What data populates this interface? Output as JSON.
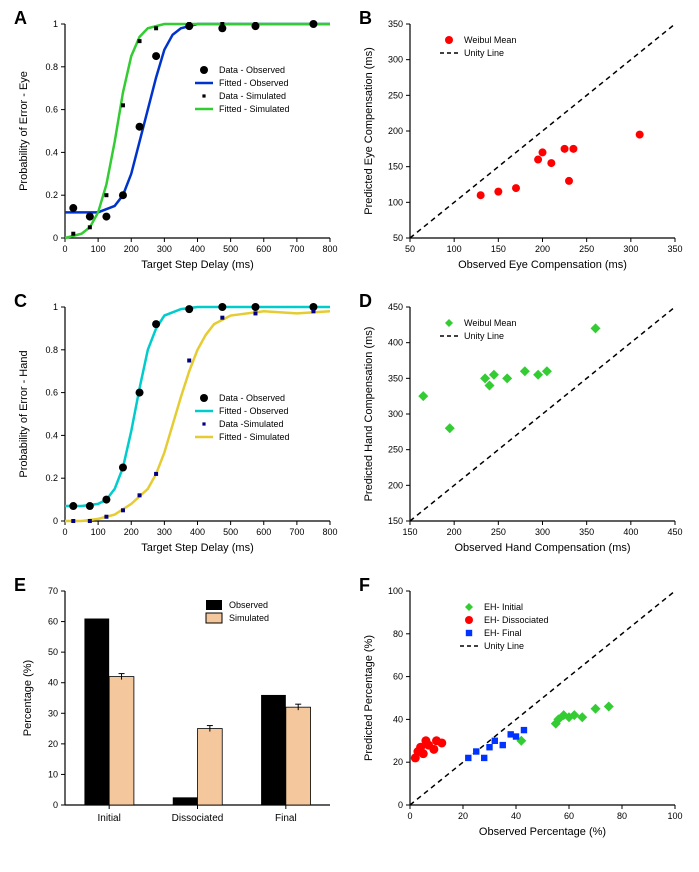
{
  "panelA": {
    "label": "A",
    "type": "line+scatter",
    "xlabel": "Target Step Delay (ms)",
    "ylabel": "Probability of Error - Eye",
    "xlim": [
      0,
      800
    ],
    "ylim": [
      0,
      1
    ],
    "xticks": [
      0,
      100,
      200,
      300,
      400,
      500,
      600,
      700,
      800
    ],
    "yticks": [
      0,
      0.2,
      0.4,
      0.6,
      0.8,
      1.0
    ],
    "background_color": "#ffffff",
    "axis_color": "#000000",
    "legend": {
      "items": [
        {
          "marker": "circle",
          "color": "#000000",
          "label": "Data - Observed"
        },
        {
          "marker": "line",
          "color": "#0033cc",
          "label": "Fitted - Observed"
        },
        {
          "marker": "square-tiny",
          "color": "#000000",
          "label": "Data - Simulated"
        },
        {
          "marker": "line",
          "color": "#33cc33",
          "label": "Fitted - Simulated"
        }
      ]
    },
    "series": [
      {
        "name": "fitted-observed",
        "type": "line",
        "color": "#0033cc",
        "linewidth": 2.5,
        "x": [
          0,
          50,
          100,
          150,
          175,
          200,
          225,
          250,
          275,
          300,
          325,
          350,
          400,
          500,
          600,
          700,
          800
        ],
        "y": [
          0.12,
          0.12,
          0.12,
          0.15,
          0.2,
          0.3,
          0.45,
          0.6,
          0.75,
          0.88,
          0.95,
          0.98,
          1.0,
          1.0,
          1.0,
          1.0,
          1.0
        ]
      },
      {
        "name": "fitted-simulated",
        "type": "line",
        "color": "#33cc33",
        "linewidth": 2.5,
        "x": [
          0,
          50,
          75,
          100,
          125,
          150,
          175,
          200,
          225,
          250,
          275,
          300,
          400,
          500,
          600,
          700,
          800
        ],
        "y": [
          0.0,
          0.02,
          0.05,
          0.12,
          0.25,
          0.45,
          0.68,
          0.85,
          0.94,
          0.98,
          0.99,
          1.0,
          1.0,
          1.0,
          1.0,
          1.0,
          1.0
        ]
      },
      {
        "name": "data-observed",
        "type": "scatter",
        "marker": "circle",
        "color": "#000000",
        "size": 4,
        "x": [
          25,
          75,
          125,
          175,
          225,
          275,
          375,
          475,
          575,
          750
        ],
        "y": [
          0.14,
          0.1,
          0.1,
          0.2,
          0.52,
          0.85,
          0.99,
          0.98,
          0.99,
          1.0
        ]
      },
      {
        "name": "data-simulated",
        "type": "scatter",
        "marker": "square",
        "color": "#000000",
        "size": 2.5,
        "x": [
          25,
          75,
          125,
          175,
          225,
          275,
          375,
          475,
          575,
          750
        ],
        "y": [
          0.02,
          0.05,
          0.2,
          0.62,
          0.92,
          0.98,
          1.0,
          1.0,
          1.0,
          1.0
        ]
      }
    ]
  },
  "panelB": {
    "label": "B",
    "type": "scatter",
    "xlabel": "Observed Eye Compensation (ms)",
    "ylabel": "Predicted Eye Compensation (ms)",
    "xlim": [
      50,
      350
    ],
    "ylim": [
      50,
      350
    ],
    "xticks": [
      50,
      100,
      150,
      200,
      250,
      300,
      350
    ],
    "yticks": [
      50,
      100,
      150,
      200,
      250,
      300,
      350
    ],
    "legend": {
      "items": [
        {
          "marker": "circle",
          "color": "#ff0000",
          "label": "Weibul Mean"
        },
        {
          "marker": "dash",
          "color": "#000000",
          "label": "Unity Line"
        }
      ]
    },
    "unity_line": true,
    "series": [
      {
        "name": "weibul-mean",
        "type": "scatter",
        "marker": "circle",
        "color": "#ff0000",
        "size": 4,
        "x": [
          130,
          150,
          170,
          195,
          200,
          210,
          225,
          230,
          235,
          310
        ],
        "y": [
          110,
          115,
          120,
          160,
          170,
          155,
          175,
          130,
          175,
          195
        ]
      }
    ]
  },
  "panelC": {
    "label": "C",
    "type": "line+scatter",
    "xlabel": "Target Step Delay (ms)",
    "ylabel": "Probability of Error - Hand",
    "xlim": [
      0,
      800
    ],
    "ylim": [
      0,
      1
    ],
    "xticks": [
      0,
      100,
      200,
      300,
      400,
      500,
      600,
      700,
      800
    ],
    "yticks": [
      0,
      0.2,
      0.4,
      0.6,
      0.8,
      1.0
    ],
    "legend": {
      "items": [
        {
          "marker": "circle",
          "color": "#000000",
          "label": "Data - Observed"
        },
        {
          "marker": "line",
          "color": "#00cccc",
          "label": "Fitted - Observed"
        },
        {
          "marker": "square-tiny",
          "color": "#000080",
          "label": "Data -Simulated"
        },
        {
          "marker": "line",
          "color": "#e6cc33",
          "label": "Fitted - Simulated"
        }
      ]
    },
    "series": [
      {
        "name": "fitted-observed",
        "type": "line",
        "color": "#00cccc",
        "linewidth": 2.5,
        "x": [
          0,
          50,
          100,
          125,
          150,
          175,
          200,
          225,
          250,
          275,
          300,
          350,
          400,
          500,
          600,
          700,
          800
        ],
        "y": [
          0.07,
          0.07,
          0.08,
          0.1,
          0.15,
          0.25,
          0.42,
          0.62,
          0.8,
          0.9,
          0.96,
          0.99,
          1.0,
          1.0,
          1.0,
          1.0,
          1.0
        ]
      },
      {
        "name": "fitted-simulated",
        "type": "line",
        "color": "#e6cc33",
        "linewidth": 2.5,
        "x": [
          0,
          50,
          100,
          150,
          200,
          250,
          275,
          300,
          325,
          350,
          375,
          400,
          425,
          450,
          500,
          600,
          700,
          800
        ],
        "y": [
          0.0,
          0.0,
          0.01,
          0.03,
          0.08,
          0.15,
          0.22,
          0.32,
          0.45,
          0.58,
          0.7,
          0.8,
          0.87,
          0.92,
          0.96,
          0.98,
          0.97,
          0.98
        ]
      },
      {
        "name": "data-observed",
        "type": "scatter",
        "marker": "circle",
        "color": "#000000",
        "size": 4,
        "x": [
          25,
          75,
          125,
          175,
          225,
          275,
          375,
          475,
          575,
          750
        ],
        "y": [
          0.07,
          0.07,
          0.1,
          0.25,
          0.6,
          0.92,
          0.99,
          1.0,
          1.0,
          1.0
        ]
      },
      {
        "name": "data-simulated",
        "type": "scatter",
        "marker": "square",
        "color": "#000080",
        "size": 2.5,
        "x": [
          25,
          75,
          125,
          175,
          225,
          275,
          375,
          475,
          575,
          750
        ],
        "y": [
          0.0,
          0.0,
          0.02,
          0.05,
          0.12,
          0.22,
          0.75,
          0.95,
          0.97,
          0.98
        ]
      }
    ]
  },
  "panelD": {
    "label": "D",
    "type": "scatter",
    "xlabel": "Observed Hand Compensation (ms)",
    "ylabel": "Predicted Hand Compensation (ms)",
    "xlim": [
      150,
      450
    ],
    "ylim": [
      150,
      450
    ],
    "xticks": [
      150,
      200,
      250,
      300,
      350,
      400,
      450
    ],
    "yticks": [
      150,
      200,
      250,
      300,
      350,
      400,
      450
    ],
    "legend": {
      "items": [
        {
          "marker": "diamond",
          "color": "#33cc33",
          "label": "Weibul Mean"
        },
        {
          "marker": "dash",
          "color": "#000000",
          "label": "Unity Line"
        }
      ]
    },
    "unity_line": true,
    "series": [
      {
        "name": "weibul-mean",
        "type": "scatter",
        "marker": "diamond",
        "color": "#33cc33",
        "size": 5,
        "x": [
          165,
          195,
          235,
          240,
          245,
          260,
          280,
          295,
          305,
          360
        ],
        "y": [
          325,
          280,
          350,
          340,
          355,
          350,
          360,
          355,
          360,
          420
        ]
      }
    ]
  },
  "panelE": {
    "label": "E",
    "type": "bar",
    "xlabel": "",
    "ylabel": "Percentage (%)",
    "ylim": [
      0,
      70
    ],
    "yticks": [
      0,
      10,
      20,
      30,
      40,
      50,
      60,
      70
    ],
    "categories": [
      "Initial",
      "Dissociated",
      "Final"
    ],
    "legend": {
      "items": [
        {
          "marker": "rect",
          "color": "#000000",
          "label": "Observed"
        },
        {
          "marker": "rect",
          "color": "#f4c89c",
          "label": "Simulated",
          "stroke": "#000000"
        }
      ]
    },
    "series": [
      {
        "name": "observed",
        "color": "#000000",
        "values": [
          61,
          2.5,
          36
        ]
      },
      {
        "name": "simulated",
        "color": "#f4c89c",
        "stroke": "#000000",
        "values": [
          42,
          25,
          32
        ]
      }
    ],
    "bar_width": 0.35
  },
  "panelF": {
    "label": "F",
    "type": "scatter",
    "xlabel": "Observed Percentage (%)",
    "ylabel": "Predicted Percentage (%)",
    "xlim": [
      0,
      100
    ],
    "ylim": [
      0,
      100
    ],
    "xticks": [
      0,
      20,
      40,
      60,
      80,
      100
    ],
    "yticks": [
      0,
      20,
      40,
      60,
      80,
      100
    ],
    "legend": {
      "items": [
        {
          "marker": "diamond",
          "color": "#33cc33",
          "label": "EH- Initial"
        },
        {
          "marker": "circle",
          "color": "#ff0000",
          "label": "EH- Dissociated"
        },
        {
          "marker": "square",
          "color": "#0033ff",
          "label": "EH- Final"
        },
        {
          "marker": "dash",
          "color": "#000000",
          "label": "Unity Line"
        }
      ]
    },
    "unity_line": true,
    "series": [
      {
        "name": "eh-initial",
        "type": "scatter",
        "marker": "diamond",
        "color": "#33cc33",
        "size": 5,
        "x": [
          42,
          55,
          56,
          58,
          60,
          62,
          65,
          70,
          75
        ],
        "y": [
          30,
          38,
          40,
          42,
          41,
          42,
          41,
          45,
          46
        ]
      },
      {
        "name": "eh-dissociated",
        "type": "scatter",
        "marker": "circle",
        "color": "#ff0000",
        "size": 4.5,
        "x": [
          2,
          3,
          4,
          5,
          6,
          7,
          9,
          10,
          12
        ],
        "y": [
          22,
          25,
          27,
          24,
          30,
          28,
          26,
          30,
          29
        ]
      },
      {
        "name": "eh-final",
        "type": "scatter",
        "marker": "square",
        "color": "#0033ff",
        "size": 4,
        "x": [
          22,
          25,
          28,
          30,
          32,
          35,
          38,
          40,
          43
        ],
        "y": [
          22,
          25,
          22,
          27,
          30,
          28,
          33,
          32,
          35
        ]
      }
    ]
  },
  "label_fontsize": 11,
  "tick_fontsize": 9,
  "legend_fontsize": 9
}
